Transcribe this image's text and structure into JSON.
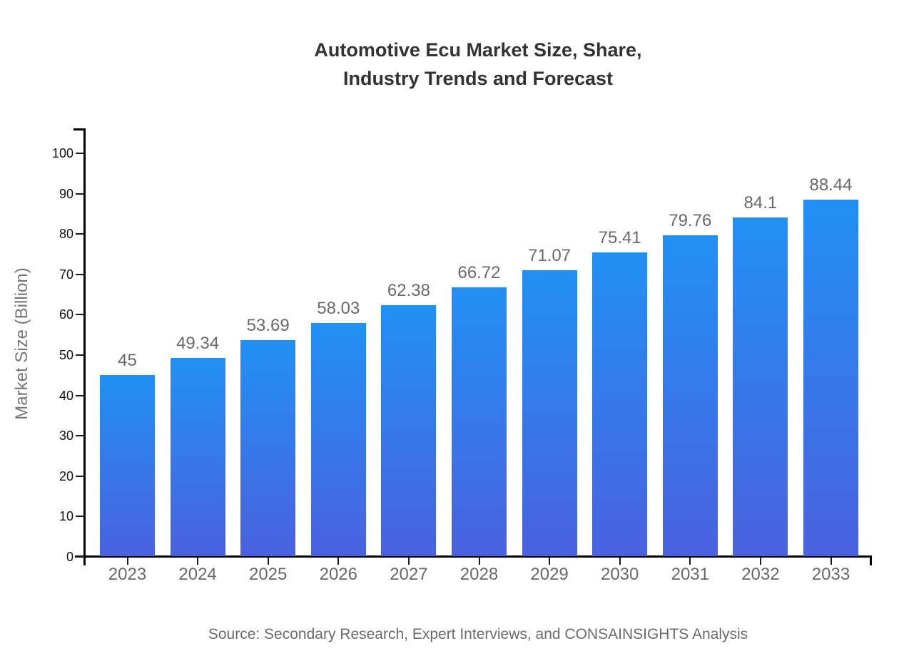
{
  "header": {
    "title_lines": [
      "Automotive Ecu Market Size, Share,",
      "Industry Trends and Forecast"
    ]
  },
  "chart_data": {
    "type": "bar",
    "title": "Automotive Ecu Market Size, Share, Industry Trends and Forecast",
    "categories": [
      "2023",
      "2024",
      "2025",
      "2026",
      "2027",
      "2028",
      "2029",
      "2030",
      "2031",
      "2032",
      "2033"
    ],
    "values": [
      45,
      49.34,
      53.69,
      58.03,
      62.38,
      66.72,
      71.07,
      75.41,
      79.76,
      84.1,
      88.44
    ],
    "value_labels": [
      "45",
      "49.34",
      "53.69",
      "58.03",
      "62.38",
      "66.72",
      "71.07",
      "75.41",
      "79.76",
      "84.1",
      "88.44"
    ],
    "xlabel": "",
    "ylabel": "Market Size (Billion)",
    "ylim": [
      0,
      100
    ],
    "ytick_step": 10,
    "ytick_labels": [
      "0",
      "10",
      "20",
      "30",
      "40",
      "50",
      "60",
      "70",
      "80",
      "90",
      "100"
    ],
    "grid": false,
    "legend": false,
    "bar_color_top": "#2190F5",
    "bar_color_bottom": "#4A61DE"
  },
  "footer": {
    "source": "Source: Secondary Research, Expert Interviews, and CONSAINSIGHTS Analysis"
  },
  "colors": {
    "background": "#ffffff",
    "title": "#333333",
    "axis": "#000000",
    "ytick_label": "#111111",
    "category_label": "#696969",
    "value_label": "#696969",
    "y_axis_title": "#777777",
    "source": "#6b6b6b"
  }
}
